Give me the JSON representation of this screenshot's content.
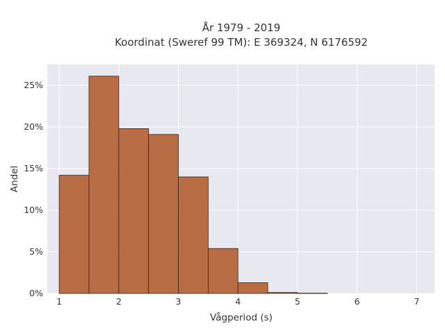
{
  "chart_data": {
    "type": "bar",
    "title": "År 1979 - 2019",
    "subtitle": "Koordinat (Sweref 99 TM): E 369324, N 6176592",
    "xlabel": "Vågperiod (s)",
    "ylabel": "Andel",
    "xlim": [
      0.8,
      7.3
    ],
    "ylim": [
      0,
      0.275
    ],
    "x_ticks": [
      1,
      2,
      3,
      4,
      5,
      6,
      7
    ],
    "x_tick_labels": [
      "1",
      "2",
      "3",
      "4",
      "5",
      "6",
      "7"
    ],
    "y_ticks": [
      0,
      0.05,
      0.1,
      0.15,
      0.2,
      0.25
    ],
    "y_tick_labels": [
      "0%",
      "5%",
      "10%",
      "15%",
      "20%",
      "25%"
    ],
    "grid": true,
    "bar_color": "#b5663a",
    "bar_edge_color": "#3b2314",
    "plot_bg_color": "#e8e8f0",
    "bins": [
      {
        "start": 1.0,
        "end": 1.5,
        "value": 0.142
      },
      {
        "start": 1.5,
        "end": 2.0,
        "value": 0.261
      },
      {
        "start": 2.0,
        "end": 2.5,
        "value": 0.198
      },
      {
        "start": 2.5,
        "end": 3.0,
        "value": 0.191
      },
      {
        "start": 3.0,
        "end": 3.5,
        "value": 0.14
      },
      {
        "start": 3.5,
        "end": 4.0,
        "value": 0.054
      },
      {
        "start": 4.0,
        "end": 4.5,
        "value": 0.013
      },
      {
        "start": 4.5,
        "end": 5.0,
        "value": 0.0012
      },
      {
        "start": 5.0,
        "end": 5.5,
        "value": 0.0004
      }
    ]
  }
}
